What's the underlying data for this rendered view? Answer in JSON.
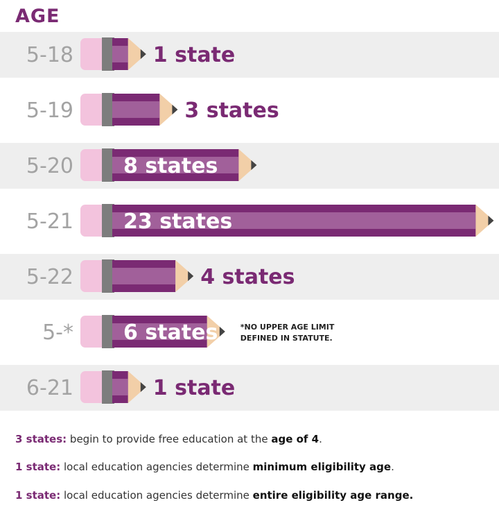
{
  "title": "AGE",
  "colors": {
    "accent": "#7a2a73",
    "pencil_light": "#a1609a",
    "eraser": "#f3c3dd",
    "ferrule": "#7d7d7d",
    "wood": "#f2cfa8",
    "lead": "#444444",
    "row_shade": "#eeeeee",
    "row_label": "#a3a3a3"
  },
  "chart_data": {
    "type": "bar",
    "orientation": "horizontal",
    "style": "pencil",
    "categories": [
      "5-18",
      "5-19",
      "5-20",
      "5-21",
      "5-22",
      "5-*",
      "6-21"
    ],
    "values": [
      1,
      3,
      8,
      23,
      4,
      6,
      1
    ],
    "value_labels": [
      "1 state",
      "3 states",
      "8 states",
      "23 states",
      "4 states",
      "6 states",
      "1 state"
    ],
    "unit": "states",
    "annotations": [
      {
        "category": "5-*",
        "lines": [
          "*NO UPPER AGE LIMIT",
          "DEFINED IN STATUTE."
        ]
      }
    ]
  },
  "notes": [
    {
      "highlight": "3 states:",
      "text": " begin to provide free education at the ",
      "bold": "age of 4",
      "end": "."
    },
    {
      "highlight": "1 state:",
      "text": " local education agencies determine ",
      "bold": "minimum eligibility age",
      "end": "."
    },
    {
      "highlight": "1 state:",
      "text": " local education agencies determine ",
      "bold": "entire eligibility age range.",
      "end": ""
    }
  ]
}
